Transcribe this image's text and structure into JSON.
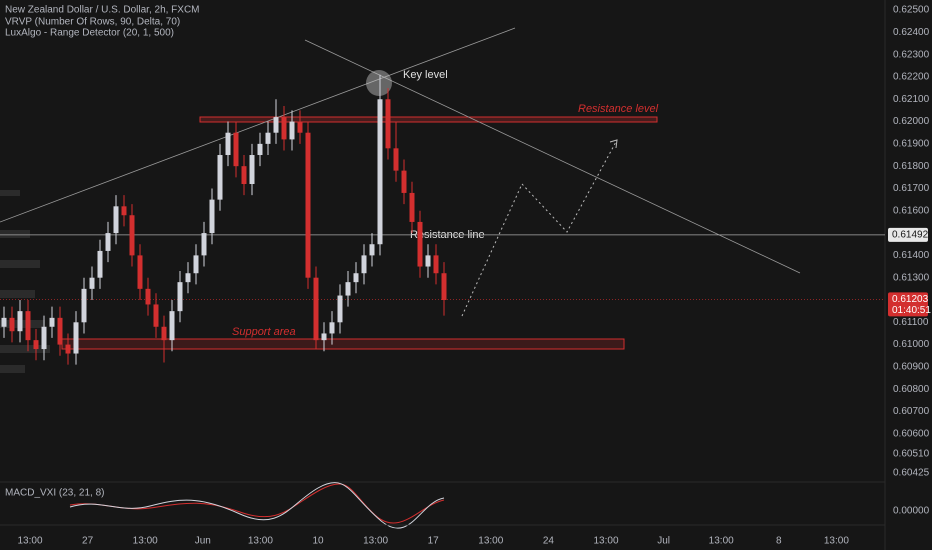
{
  "chart_data": {
    "type": "candlestick",
    "title": "New Zealand Dollar / U.S. Dollar, 2h, FXCM",
    "indicators": [
      "VRVP (Number Of Rows, 90, Delta, 70)",
      "LuxAlgo - Range Detector (20, 1, 500)"
    ],
    "up_color": "#d1d4dc",
    "down_color": "#d32f2f",
    "open": [
      0.6108,
      0.6112,
      0.6106,
      0.6115,
      0.6102,
      0.6098,
      0.6108,
      0.6112,
      0.61,
      0.6096,
      0.611,
      0.6125,
      0.613,
      0.6142,
      0.615,
      0.6162,
      0.6158,
      0.614,
      0.6125,
      0.6118,
      0.6108,
      0.6102,
      0.6115,
      0.6128,
      0.6132,
      0.614,
      0.615,
      0.6165,
      0.6185,
      0.6195,
      0.618,
      0.6172,
      0.6185,
      0.619,
      0.6195,
      0.6202,
      0.6192,
      0.62,
      0.6195,
      0.613,
      0.6102,
      0.6105,
      0.611,
      0.6122,
      0.6128,
      0.6132,
      0.614,
      0.6145,
      0.621,
      0.6188,
      0.6178,
      0.6168,
      0.6155,
      0.6135,
      0.614,
      0.6132
    ],
    "high": [
      0.6117,
      0.6117,
      0.612,
      0.612,
      0.6107,
      0.6113,
      0.6117,
      0.6117,
      0.6105,
      0.6115,
      0.613,
      0.6135,
      0.6147,
      0.6155,
      0.6167,
      0.6167,
      0.6163,
      0.6145,
      0.613,
      0.6123,
      0.6113,
      0.612,
      0.6133,
      0.6137,
      0.6145,
      0.6155,
      0.617,
      0.619,
      0.62,
      0.62,
      0.6185,
      0.619,
      0.6195,
      0.62,
      0.621,
      0.6207,
      0.6205,
      0.6205,
      0.62,
      0.6135,
      0.611,
      0.6115,
      0.6127,
      0.6133,
      0.6137,
      0.6145,
      0.615,
      0.6221,
      0.6215,
      0.62,
      0.6183,
      0.6173,
      0.616,
      0.6145,
      0.6145,
      0.6137
    ],
    "low": [
      0.6103,
      0.6101,
      0.6101,
      0.6097,
      0.6093,
      0.6093,
      0.6103,
      0.6095,
      0.6091,
      0.6091,
      0.6105,
      0.612,
      0.6125,
      0.6137,
      0.6145,
      0.6153,
      0.6135,
      0.612,
      0.6113,
      0.6103,
      0.6092,
      0.6097,
      0.611,
      0.6123,
      0.6127,
      0.6135,
      0.6145,
      0.616,
      0.618,
      0.6175,
      0.6167,
      0.6167,
      0.618,
      0.6185,
      0.619,
      0.6187,
      0.6187,
      0.619,
      0.6125,
      0.6098,
      0.6097,
      0.61,
      0.6105,
      0.6117,
      0.6123,
      0.6127,
      0.6135,
      0.614,
      0.6183,
      0.6173,
      0.6163,
      0.615,
      0.613,
      0.613,
      0.6127,
      0.6113
    ],
    "close": [
      0.6112,
      0.6106,
      0.6115,
      0.6102,
      0.6098,
      0.6108,
      0.6112,
      0.61,
      0.6096,
      0.611,
      0.6125,
      0.613,
      0.6142,
      0.615,
      0.6162,
      0.6158,
      0.614,
      0.6125,
      0.6118,
      0.6108,
      0.6102,
      0.6115,
      0.6128,
      0.6132,
      0.614,
      0.615,
      0.6165,
      0.6185,
      0.6195,
      0.618,
      0.6172,
      0.6185,
      0.619,
      0.6195,
      0.6202,
      0.6192,
      0.62,
      0.6195,
      0.613,
      0.6102,
      0.6105,
      0.611,
      0.6122,
      0.6128,
      0.6132,
      0.614,
      0.6145,
      0.621,
      0.6188,
      0.6178,
      0.6168,
      0.6155,
      0.6135,
      0.614,
      0.6132,
      0.612
    ],
    "x_labels": [
      "13:00",
      "27",
      "13:00",
      "Jun",
      "13:00",
      "10",
      "13:00",
      "17",
      "13:00",
      "24",
      "13:00",
      "Jul",
      "13:00",
      "8",
      "13:00"
    ],
    "ylim": [
      0.60384,
      0.62545
    ],
    "yticks": [
      {
        "value": 0.625,
        "label": "0.62500"
      },
      {
        "value": 0.624,
        "label": "0.62400"
      },
      {
        "value": 0.623,
        "label": "0.62300"
      },
      {
        "value": 0.622,
        "label": "0.62200"
      },
      {
        "value": 0.621,
        "label": "0.62100"
      },
      {
        "value": 0.62,
        "label": "0.62000"
      },
      {
        "value": 0.619,
        "label": "0.61900"
      },
      {
        "value": 0.618,
        "label": "0.61800"
      },
      {
        "value": 0.617,
        "label": "0.61700"
      },
      {
        "value": 0.616,
        "label": "0.61600"
      },
      {
        "value": 0.614,
        "label": "0.61400"
      },
      {
        "value": 0.613,
        "label": "0.61300"
      },
      {
        "value": 0.611,
        "label": "0.61100"
      },
      {
        "value": 0.61,
        "label": "0.61000"
      },
      {
        "value": 0.609,
        "label": "0.60900"
      },
      {
        "value": 0.608,
        "label": "0.60800"
      },
      {
        "value": 0.607,
        "label": "0.60700"
      },
      {
        "value": 0.606,
        "label": "0.60600"
      },
      {
        "value": 0.6051,
        "label": "0.60510"
      },
      {
        "value": 0.60425,
        "label": "0.60425"
      }
    ],
    "grid": false,
    "line_price": 0.61492,
    "last_price": 0.61203,
    "countdown": "01:40:51",
    "annotations": {
      "key": "Key level",
      "resistance": "Resistance level",
      "support": "Support area",
      "line": "Resistance line"
    },
    "macd_label": "MACD_VXI (23, 21, 8)",
    "macd_zero": "0.00000"
  }
}
